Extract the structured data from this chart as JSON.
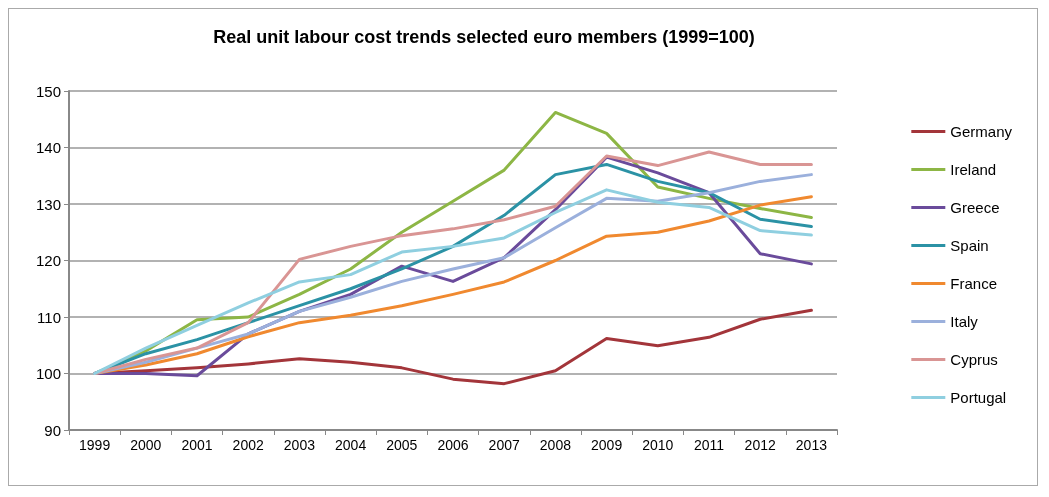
{
  "chart_data": {
    "type": "line",
    "title": "Real unit labour cost trends selected euro members (1999=100)",
    "categories": [
      "1999",
      "2000",
      "2001",
      "2002",
      "2003",
      "2004",
      "2005",
      "2006",
      "2007",
      "2008",
      "2009",
      "2010",
      "2011",
      "2012",
      "2013"
    ],
    "series": [
      {
        "name": "Germany",
        "color": "#a3353a",
        "values": [
          100,
          100.5,
          101,
          101.7,
          102.6,
          102,
          101,
          99,
          98.2,
          100.5,
          106.2,
          104.9,
          106.4,
          109.6,
          111.2
        ]
      },
      {
        "name": "Ireland",
        "color": "#8db645",
        "values": [
          100,
          104,
          109.5,
          110,
          114,
          118.5,
          125,
          130.5,
          136,
          146.2,
          142.5,
          133,
          131,
          129.2,
          127.6
        ]
      },
      {
        "name": "Greece",
        "color": "#6a4b9b",
        "values": [
          100,
          100,
          99.6,
          107,
          111,
          114,
          119,
          116.3,
          120.5,
          129,
          138.3,
          135.5,
          132,
          121.2,
          119.4
        ]
      },
      {
        "name": "Spain",
        "color": "#2b92a5",
        "values": [
          100,
          103.5,
          106,
          109,
          112,
          115,
          118.5,
          122.5,
          128,
          135.2,
          137,
          134,
          132,
          127.3,
          126
        ]
      },
      {
        "name": "France",
        "color": "#f0892f",
        "values": [
          100,
          101.5,
          103.5,
          106.5,
          109,
          110.3,
          112,
          114,
          116.2,
          120,
          124.3,
          125,
          127,
          129.8,
          131.3
        ]
      },
      {
        "name": "Italy",
        "color": "#9bb0dc",
        "values": [
          100,
          102,
          104.5,
          107,
          111,
          113.5,
          116.3,
          118.5,
          120.5,
          125.8,
          131,
          130.5,
          132,
          134,
          135.2
        ]
      },
      {
        "name": "Cyprus",
        "color": "#d99594",
        "values": [
          100,
          102.5,
          104.5,
          109,
          120.2,
          122.5,
          124.4,
          125.6,
          127.2,
          129.6,
          138.5,
          136.8,
          139.2,
          137,
          137
        ]
      },
      {
        "name": "Portugal",
        "color": "#8fcfe0",
        "values": [
          100,
          104.5,
          108.5,
          112.5,
          116.2,
          117.5,
          121.5,
          122.5,
          124,
          128.5,
          132.5,
          130.3,
          129.4,
          125.3,
          124.5
        ]
      }
    ],
    "ylim": [
      90,
      150
    ],
    "yticks": [
      90,
      100,
      110,
      120,
      130,
      140,
      150
    ],
    "grid": "y",
    "legend": "right",
    "marker": "none",
    "line_style": "solid"
  }
}
